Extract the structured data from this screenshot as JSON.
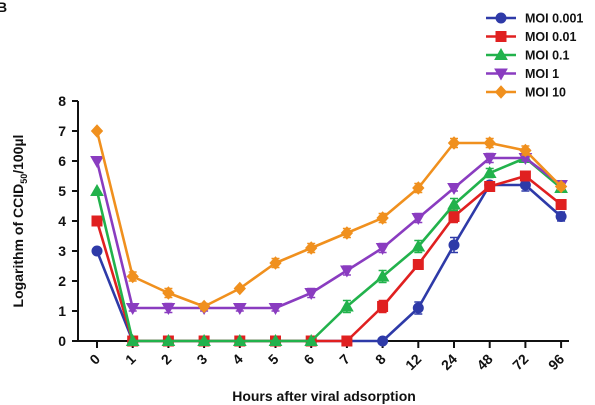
{
  "corner_label": "B",
  "chart_data": {
    "type": "line",
    "title": "",
    "xlabel": "Hours after viral adsorption",
    "ylabel_prefix": "Logarithm of CCID",
    "ylabel_sub": "50",
    "ylabel_suffix": "/100µl",
    "categories": [
      "0",
      "1",
      "2",
      "3",
      "4",
      "5",
      "6",
      "7",
      "8",
      "12",
      "24",
      "48",
      "72",
      "96"
    ],
    "ylim": [
      0,
      8
    ],
    "yticks": [
      0,
      1,
      2,
      3,
      4,
      5,
      6,
      7,
      8
    ],
    "grid": false,
    "legend_position": "top-right",
    "series": [
      {
        "name": "MOI 0.001",
        "color": "#2e3aa8",
        "marker": "circle",
        "values": [
          3,
          0,
          0,
          0,
          0,
          0,
          0,
          0,
          0,
          1.1,
          3.2,
          5.2,
          5.2,
          4.15
        ],
        "errors": [
          0,
          0,
          0,
          0,
          0,
          0,
          0,
          0,
          0,
          0.2,
          0.25,
          0.1,
          0.2,
          0.15
        ]
      },
      {
        "name": "MOI 0.01",
        "color": "#e02020",
        "marker": "square",
        "values": [
          4,
          0,
          0,
          0,
          0,
          0,
          0,
          0,
          1.15,
          2.55,
          4.15,
          5.15,
          5.5,
          4.55
        ],
        "errors": [
          0,
          0,
          0,
          0,
          0,
          0,
          0,
          0,
          0.2,
          0.15,
          0.2,
          0.15,
          0.1,
          0.1
        ]
      },
      {
        "name": "MOI 0.1",
        "color": "#22b24c",
        "marker": "triangle-up",
        "values": [
          5,
          0,
          0,
          0,
          0,
          0,
          0,
          1.15,
          2.15,
          3.15,
          4.55,
          5.6,
          6.1,
          5.1
        ],
        "errors": [
          0,
          0,
          0,
          0,
          0,
          0,
          0,
          0.2,
          0.2,
          0.2,
          0.2,
          0.15,
          0.1,
          0.1
        ]
      },
      {
        "name": "MOI 1",
        "color": "#8a3cc0",
        "marker": "triangle-down",
        "values": [
          6,
          1.1,
          1.1,
          1.1,
          1.1,
          1.1,
          1.6,
          2.35,
          3.1,
          4.1,
          5.1,
          6.1,
          6.1,
          5.2
        ],
        "errors": [
          0,
          0.1,
          0.15,
          0.1,
          0.1,
          0.1,
          0.15,
          0.15,
          0.15,
          0.15,
          0.1,
          0.15,
          0.1,
          0.1
        ]
      },
      {
        "name": "MOI 10",
        "color": "#f0901e",
        "marker": "diamond",
        "values": [
          7,
          2.15,
          1.6,
          1.15,
          1.75,
          2.6,
          3.1,
          3.6,
          4.1,
          5.1,
          6.6,
          6.6,
          6.35,
          5.15
        ],
        "errors": [
          0,
          0.15,
          0.15,
          0.1,
          0.05,
          0.15,
          0.15,
          0.15,
          0.15,
          0.15,
          0.15,
          0.15,
          0.15,
          0.1
        ]
      }
    ]
  }
}
